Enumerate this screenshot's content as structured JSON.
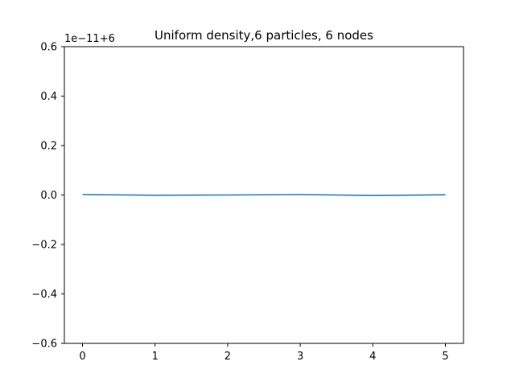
{
  "chart_data": {
    "type": "line",
    "title": "Uniform density,6 particles, 6 nodes",
    "xlabel": "",
    "ylabel": "",
    "y_offset_label": "1e−11+6",
    "xlim": [
      -0.25,
      5.25
    ],
    "ylim": [
      -0.6,
      0.6
    ],
    "x_ticks": [
      0,
      1,
      2,
      3,
      4,
      5
    ],
    "x_tick_labels": [
      "0",
      "1",
      "2",
      "3",
      "4",
      "5"
    ],
    "y_ticks": [
      -0.6,
      -0.4,
      -0.2,
      0.0,
      0.2,
      0.4,
      0.6
    ],
    "y_tick_labels": [
      "−0.6",
      "−0.4",
      "−0.2",
      "0.0",
      "0.2",
      "0.4",
      "0.6"
    ],
    "grid": false,
    "series": [
      {
        "color": "#1f77b4",
        "x": [
          0,
          1,
          2,
          3,
          4,
          5
        ],
        "y": [
          0.002,
          -0.001,
          0.0,
          0.002,
          -0.002,
          0.001
        ]
      }
    ]
  }
}
